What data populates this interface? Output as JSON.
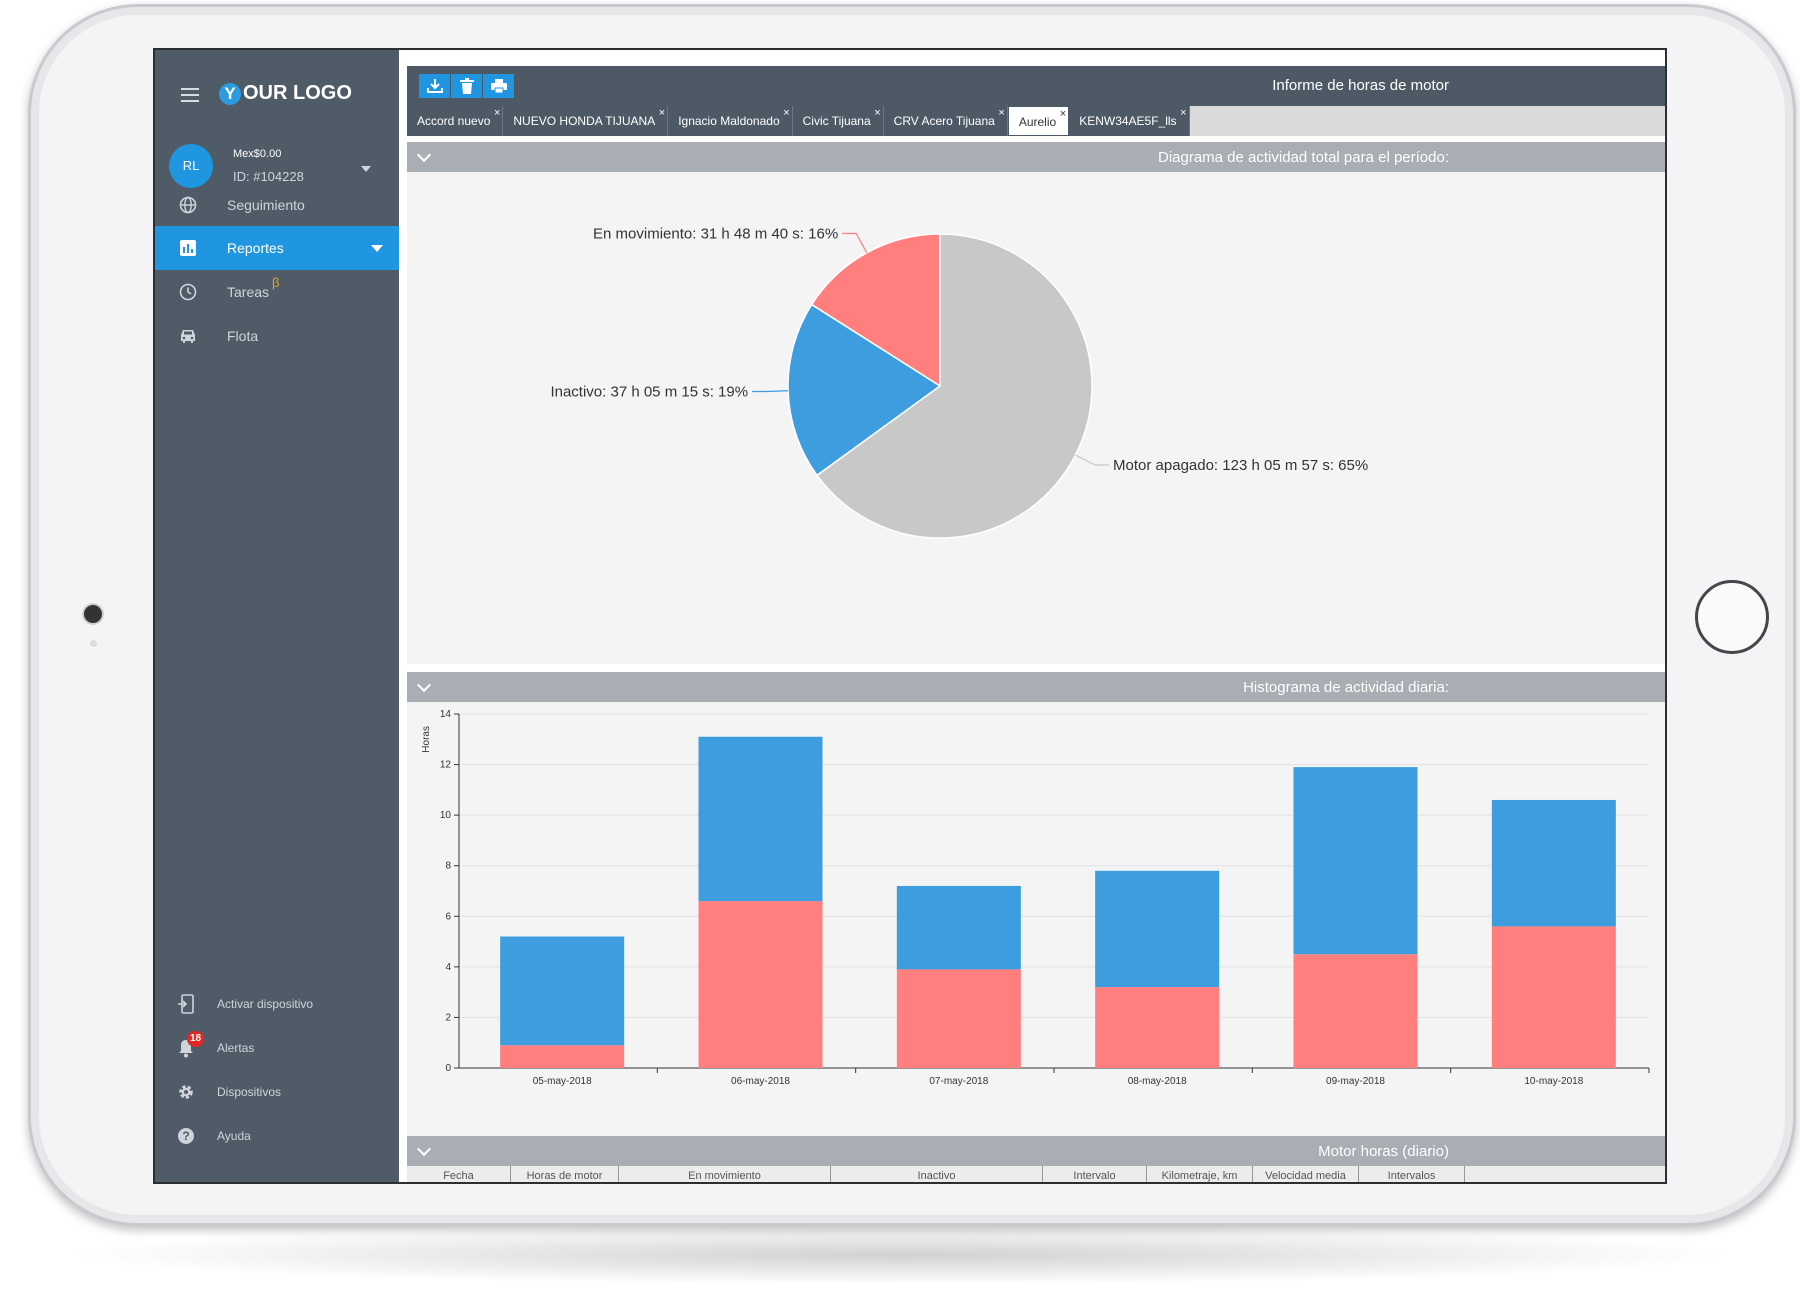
{
  "sidebar": {
    "logo_letter": "Y",
    "logo_text": "OUR LOGO",
    "avatar_initials": "RL",
    "balance": "Mex$0.00",
    "account_id": "ID: #104228",
    "nav": [
      {
        "label": "Seguimiento",
        "icon": "globe-icon"
      },
      {
        "label": "Reportes",
        "icon": "bar-chart-icon"
      },
      {
        "label": "Tareas",
        "icon": "clock-icon",
        "beta": "β"
      },
      {
        "label": "Flota",
        "icon": "car-icon"
      }
    ],
    "bottom": [
      {
        "label": "Activar dispositivo",
        "icon": "device-login-icon"
      },
      {
        "label": "Alertas",
        "icon": "bell-icon",
        "badge": "18"
      },
      {
        "label": "Dispositivos",
        "icon": "gear-icon"
      },
      {
        "label": "Ayuda",
        "icon": "help-icon"
      }
    ]
  },
  "topbar": {
    "title": "Informe de horas de motor",
    "buttons": [
      "download-icon",
      "trash-icon",
      "print-icon"
    ]
  },
  "tabs": [
    {
      "label": "Accord nuevo",
      "active": false
    },
    {
      "label": "NUEVO HONDA TIJUANA",
      "active": false
    },
    {
      "label": "Ignacio Maldonado",
      "active": false
    },
    {
      "label": "Civic Tijuana",
      "active": false
    },
    {
      "label": "CRV Acero Tijuana",
      "active": false
    },
    {
      "label": "Aurelio",
      "active": true
    },
    {
      "label": "KENW34AE5F_lls",
      "active": false
    }
  ],
  "tab_close": "×",
  "sections": {
    "pie_title": "Diagrama de actividad total para el período:",
    "hist_title": "Histograma de actividad diaria:",
    "table_title": "Motor horas (diario)"
  },
  "table_headers": [
    "Fecha",
    "Horas de motor",
    "En movimiento",
    "Inactivo",
    "Intervalo",
    "Kilometraje, km",
    "Velocidad media",
    "Intervalos"
  ],
  "colors": {
    "moving": "#ff7f7f",
    "idle": "#3d9ddf",
    "off": "#c8c8c8",
    "accent": "#2196e0"
  },
  "chart_data": [
    {
      "type": "pie",
      "slices": [
        {
          "label": "En movimiento: 31 h 48 m 40 s: 16%",
          "value": 16
        },
        {
          "label": "Inactivo: 37 h 05 m 15 s: 19%",
          "value": 19
        },
        {
          "label": "Motor apagado: 123 h 05 m 57 s: 65%",
          "value": 65
        }
      ]
    },
    {
      "type": "bar",
      "stacked": true,
      "ylabel": "Horas",
      "ylim": [
        0,
        14
      ],
      "yticks": [
        0,
        2,
        4,
        6,
        8,
        10,
        12,
        14
      ],
      "categories": [
        "05-may-2018",
        "06-may-2018",
        "07-may-2018",
        "08-may-2018",
        "09-may-2018",
        "10-may-2018"
      ],
      "series": [
        {
          "values": [
            0.9,
            6.6,
            3.9,
            3.2,
            4.5,
            5.6
          ]
        },
        {
          "values": [
            4.3,
            6.5,
            3.3,
            4.6,
            7.4,
            5.0
          ]
        }
      ],
      "grid": true
    }
  ]
}
